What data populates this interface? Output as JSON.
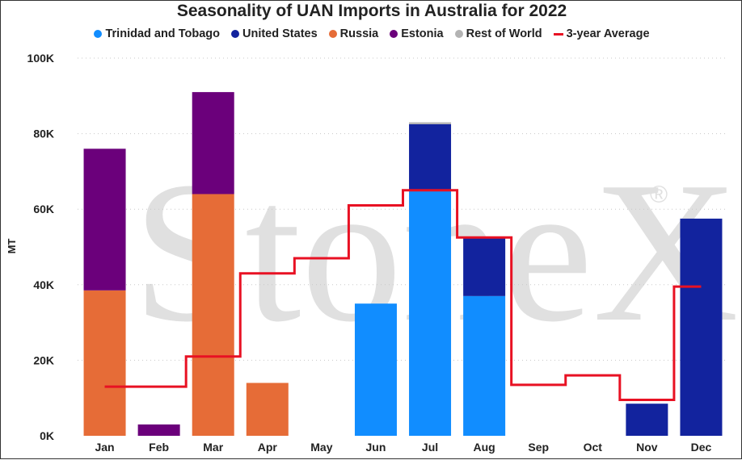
{
  "chart_data": {
    "type": "bar",
    "stacked": true,
    "title": "Seasonality of UAN Imports in Australia for 2022",
    "ylabel": "MT",
    "xlabel": "",
    "ylim": [
      0,
      100000
    ],
    "yticks": [
      0,
      20000,
      40000,
      60000,
      80000,
      100000
    ],
    "ytick_labels": [
      "0K",
      "20K",
      "40K",
      "60K",
      "80K",
      "100K"
    ],
    "grid": "horizontal dotted",
    "legend_position": "top",
    "watermark": "StoneX",
    "watermark_mark": "®",
    "categories": [
      "Jan",
      "Feb",
      "Mar",
      "Apr",
      "May",
      "Jun",
      "Jul",
      "Aug",
      "Sep",
      "Oct",
      "Nov",
      "Dec"
    ],
    "series": [
      {
        "name": "Trinidad and Tobago",
        "color": "#118DFF",
        "kind": "bar",
        "values": [
          0,
          0,
          0,
          0,
          0,
          35000,
          65000,
          37000,
          0,
          0,
          0,
          0
        ]
      },
      {
        "name": "United States",
        "color": "#12239E",
        "kind": "bar",
        "values": [
          0,
          0,
          0,
          0,
          0,
          0,
          17500,
          15500,
          0,
          0,
          8500,
          57500
        ]
      },
      {
        "name": "Russia",
        "color": "#E66C37",
        "kind": "bar",
        "values": [
          38500,
          0,
          64000,
          14000,
          0,
          0,
          0,
          0,
          0,
          0,
          0,
          0
        ]
      },
      {
        "name": "Estonia",
        "color": "#6B007B",
        "kind": "bar",
        "values": [
          37500,
          3000,
          27000,
          0,
          0,
          0,
          0,
          0,
          0,
          0,
          0,
          0
        ]
      },
      {
        "name": "Rest of World",
        "color": "#B3B3B3",
        "kind": "bar",
        "values": [
          0,
          0,
          0,
          0,
          0,
          0,
          500,
          0,
          0,
          0,
          0,
          0
        ]
      },
      {
        "name": "3-year Average",
        "color": "#E81123",
        "kind": "step-line",
        "values": [
          13000,
          13000,
          21000,
          43000,
          47000,
          61000,
          65000,
          52500,
          13500,
          16000,
          9500,
          39500
        ]
      }
    ]
  }
}
